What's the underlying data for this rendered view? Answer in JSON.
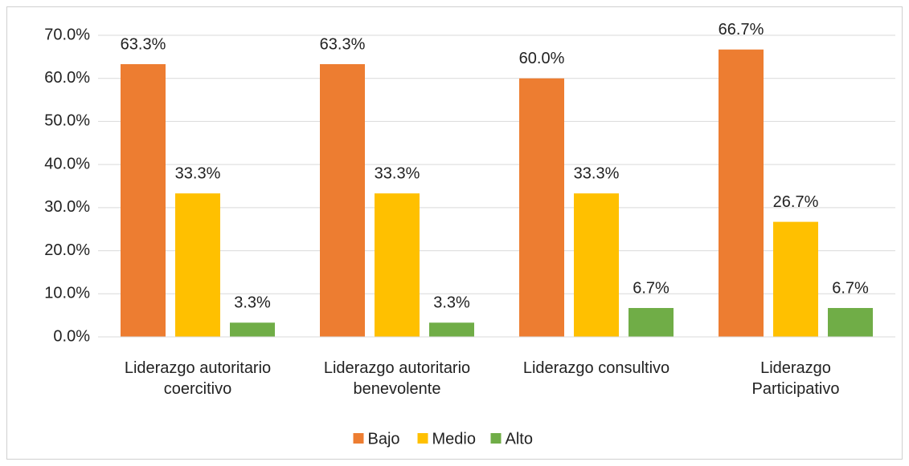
{
  "chart_data": {
    "type": "bar",
    "categories": [
      "Liderazgo autoritario\ncoercitivo",
      "Liderazgo autoritario\nbenevolente",
      "Liderazgo consultivo",
      "Liderazgo\nParticipativo"
    ],
    "series": [
      {
        "name": "Bajo",
        "color": "#ed7d31",
        "values": [
          63.3,
          63.3,
          60.0,
          66.7
        ],
        "value_labels": [
          "63.3%",
          "63.3%",
          "60.0%",
          "66.7%"
        ]
      },
      {
        "name": "Medio",
        "color": "#ffc000",
        "values": [
          33.3,
          33.3,
          33.3,
          26.7
        ],
        "value_labels": [
          "33.3%",
          "33.3%",
          "33.3%",
          "26.7%"
        ]
      },
      {
        "name": "Alto",
        "color": "#70ad47",
        "values": [
          3.3,
          3.3,
          6.7,
          6.7
        ],
        "value_labels": [
          "3.3%",
          "3.3%",
          "6.7%",
          "6.7%"
        ]
      }
    ],
    "ylim": [
      0,
      70
    ],
    "yticks": [
      {
        "value": 0,
        "label": "0.0%"
      },
      {
        "value": 10,
        "label": "10.0%"
      },
      {
        "value": 20,
        "label": "20.0%"
      },
      {
        "value": 30,
        "label": "30.0%"
      },
      {
        "value": 40,
        "label": "40.0%"
      },
      {
        "value": 50,
        "label": "50.0%"
      },
      {
        "value": 60,
        "label": "60.0%"
      },
      {
        "value": 70,
        "label": "70.0%"
      }
    ],
    "grid": true,
    "legend": "bottom"
  }
}
